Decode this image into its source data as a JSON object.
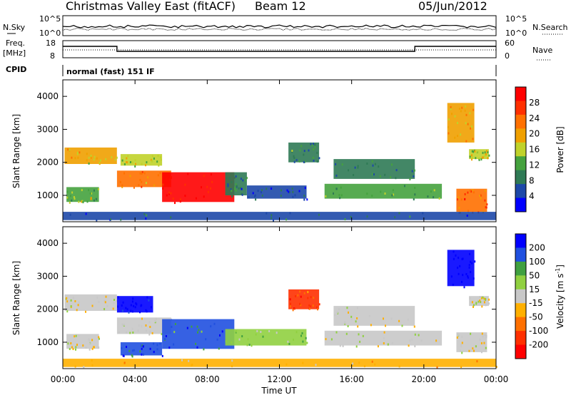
{
  "header": {
    "title": "Christmas Valley East (fitACF)",
    "beam": "Beam 12",
    "date": "05/Jun/2012"
  },
  "strip_labels": {
    "nsky": "N.Sky",
    "nsky_ticks": [
      "10^5",
      "10^0"
    ],
    "nsearch": "N.Search",
    "nsearch_ticks": [
      "10^5",
      "10^0"
    ],
    "freq_line1": "Freq.",
    "freq_line2": "[MHz]",
    "freq_ticks": [
      "18",
      "8"
    ],
    "nave_ticks": [
      "60",
      "0"
    ],
    "nave": "Nave",
    "cpid": "CPID",
    "cpid_value": "normal (fast) 151 IF"
  },
  "x_axis": {
    "label": "Time UT",
    "tick_labels": [
      "00:00",
      "04:00",
      "08:00",
      "12:00",
      "16:00",
      "20:00",
      "00:00"
    ]
  },
  "power_colorbar": {
    "label": "Power [dB]",
    "tick_labels": [
      "28",
      "24",
      "20",
      "16",
      "12",
      "8",
      "4"
    ],
    "colors": [
      "#0000ff",
      "#1d48a8",
      "#2f7a55",
      "#45a23e",
      "#c0d22a",
      "#f0a000",
      "#ff7000",
      "#ff3000",
      "#ff0000"
    ]
  },
  "velocity_colorbar": {
    "label": "Velocity [m s",
    "label_sup": "-1",
    "label_end": "]",
    "tick_labels": [
      "200",
      "100",
      "50",
      "15",
      "-15",
      "-50",
      "-100",
      "-200"
    ],
    "colors": [
      "#0000ff",
      "#2050e0",
      "#40a040",
      "#90d040",
      "#c8c8c8",
      "#ffb000",
      "#ff7000",
      "#ff3000",
      "#ff0000"
    ]
  },
  "chart_data": [
    {
      "type": "heatmap",
      "name": "power",
      "ylabel": "Slant Range [km]",
      "xlabel": "",
      "ylim": [
        200,
        4500
      ],
      "y_tick_labels": [
        "1000",
        "2000",
        "3000",
        "4000"
      ],
      "x_hours": [
        0,
        24
      ],
      "color_scale": [
        0,
        32
      ],
      "regions": [
        {
          "t0": 0.1,
          "t1": 3.0,
          "r0": 1950,
          "r1": 2450,
          "v": 18
        },
        {
          "t0": 0.2,
          "t1": 2.0,
          "r0": 800,
          "r1": 1250,
          "v": 14
        },
        {
          "t0": 3.0,
          "t1": 6.0,
          "r0": 1250,
          "r1": 1750,
          "v": 22
        },
        {
          "t0": 3.2,
          "t1": 5.5,
          "r0": 1900,
          "r1": 2250,
          "v": 16
        },
        {
          "t0": 5.5,
          "t1": 9.5,
          "r0": 800,
          "r1": 1700,
          "v": 30
        },
        {
          "t0": 9.0,
          "t1": 10.2,
          "r0": 1000,
          "r1": 1700,
          "v": 8
        },
        {
          "t0": 10.2,
          "t1": 13.5,
          "r0": 900,
          "r1": 1300,
          "v": 6
        },
        {
          "t0": 12.5,
          "t1": 14.2,
          "r0": 2000,
          "r1": 2600,
          "v": 10
        },
        {
          "t0": 14.5,
          "t1": 21.0,
          "r0": 900,
          "r1": 1350,
          "v": 12
        },
        {
          "t0": 15.0,
          "t1": 19.5,
          "r0": 1500,
          "r1": 2100,
          "v": 9
        },
        {
          "t0": 21.3,
          "t1": 22.8,
          "r0": 2600,
          "r1": 3800,
          "v": 20
        },
        {
          "t0": 21.8,
          "t1": 23.5,
          "r0": 500,
          "r1": 1200,
          "v": 24
        },
        {
          "t0": 22.5,
          "t1": 23.6,
          "r0": 2100,
          "r1": 2400,
          "v": 16
        },
        {
          "t0": 0.0,
          "t1": 24.0,
          "r0": 250,
          "r1": 500,
          "v": 7
        }
      ]
    },
    {
      "type": "heatmap",
      "name": "velocity",
      "ylabel": "Slant Range [km]",
      "xlabel": "Time UT",
      "ylim": [
        200,
        4500
      ],
      "y_tick_labels": [
        "1000",
        "2000",
        "3000",
        "4000"
      ],
      "x_hours": [
        0,
        24
      ],
      "color_scale": [
        -200,
        200
      ],
      "regions": [
        {
          "t0": 0.1,
          "t1": 3.0,
          "r0": 1950,
          "r1": 2450,
          "v": 0
        },
        {
          "t0": 0.2,
          "t1": 2.0,
          "r0": 800,
          "r1": 1250,
          "v": 0
        },
        {
          "t0": 3.0,
          "t1": 5.0,
          "r0": 1900,
          "r1": 2400,
          "v": 200
        },
        {
          "t0": 3.0,
          "t1": 6.0,
          "r0": 1250,
          "r1": 1750,
          "v": 5
        },
        {
          "t0": 3.2,
          "t1": 5.5,
          "r0": 600,
          "r1": 1000,
          "v": 150
        },
        {
          "t0": 5.5,
          "t1": 9.5,
          "r0": 800,
          "r1": 1700,
          "v": 120
        },
        {
          "t0": 9.0,
          "t1": 13.5,
          "r0": 900,
          "r1": 1400,
          "v": 40
        },
        {
          "t0": 12.5,
          "t1": 14.2,
          "r0": 2000,
          "r1": 2600,
          "v": -120
        },
        {
          "t0": 14.5,
          "t1": 21.0,
          "r0": 900,
          "r1": 1350,
          "v": 0
        },
        {
          "t0": 15.0,
          "t1": 19.5,
          "r0": 1500,
          "r1": 2100,
          "v": 0
        },
        {
          "t0": 21.3,
          "t1": 22.8,
          "r0": 2700,
          "r1": 3800,
          "v": 220
        },
        {
          "t0": 21.8,
          "t1": 23.5,
          "r0": 700,
          "r1": 1300,
          "v": 0
        },
        {
          "t0": 22.5,
          "t1": 23.6,
          "r0": 2100,
          "r1": 2400,
          "v": 0
        },
        {
          "t0": 0.0,
          "t1": 24.0,
          "r0": 250,
          "r1": 500,
          "v": -40
        }
      ]
    }
  ]
}
